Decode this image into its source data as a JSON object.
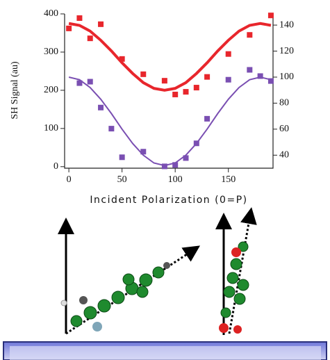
{
  "chart_data": {
    "type": "scatter",
    "y_label": "SH Signal (au)",
    "x_label": "Incident Polarization (0=P)",
    "xlim": [
      -4,
      192
    ],
    "xticks": [
      0,
      50,
      100,
      150
    ],
    "ylim": [
      -4,
      400
    ],
    "yticks": [
      0,
      100,
      200,
      300,
      400
    ],
    "y2lim": [
      30,
      148.6
    ],
    "y2ticks": [
      40,
      60,
      80,
      100,
      120,
      140
    ],
    "series": [
      {
        "color": "#e8262c",
        "mode": "markers",
        "axis": "y",
        "x": [
          0,
          10,
          20,
          30,
          50,
          70,
          90,
          100,
          110,
          120,
          130,
          150,
          170,
          190
        ],
        "values": [
          362,
          389,
          336,
          373,
          282,
          242,
          225,
          189,
          196,
          207,
          235,
          295,
          345,
          396
        ]
      },
      {
        "color": "#e8262c",
        "mode": "line",
        "axis": "y",
        "x": [
          0,
          10,
          20,
          30,
          40,
          50,
          60,
          70,
          80,
          90,
          100,
          110,
          120,
          130,
          140,
          150,
          160,
          170,
          180,
          190
        ],
        "values": [
          375,
          370,
          355,
          331,
          303,
          272,
          244,
          220,
          205,
          200,
          205,
          220,
          244,
          272,
          303,
          331,
          355,
          370,
          375,
          370
        ]
      },
      {
        "color": "#7a4fb2",
        "mode": "markers",
        "axis": "y2",
        "x": [
          10,
          20,
          30,
          40,
          50,
          70,
          90,
          100,
          110,
          120,
          130,
          150,
          170,
          180,
          190
        ],
        "values": [
          95.4,
          96.5,
          76.6,
          60.4,
          38.4,
          42.7,
          31.4,
          32.5,
          37.8,
          49.1,
          68,
          98,
          105.6,
          100.8,
          97
        ]
      },
      {
        "color": "#7a4fb2",
        "mode": "line",
        "axis": "y2",
        "x": [
          0,
          10,
          20,
          30,
          40,
          50,
          60,
          70,
          80,
          90,
          100,
          110,
          120,
          130,
          140,
          150,
          160,
          170,
          180,
          190
        ],
        "values": [
          100,
          98,
          92,
          83,
          72,
          60,
          49,
          40,
          34,
          32,
          34,
          40,
          49,
          60,
          72,
          83,
          92,
          98,
          100,
          98
        ]
      }
    ]
  }
}
